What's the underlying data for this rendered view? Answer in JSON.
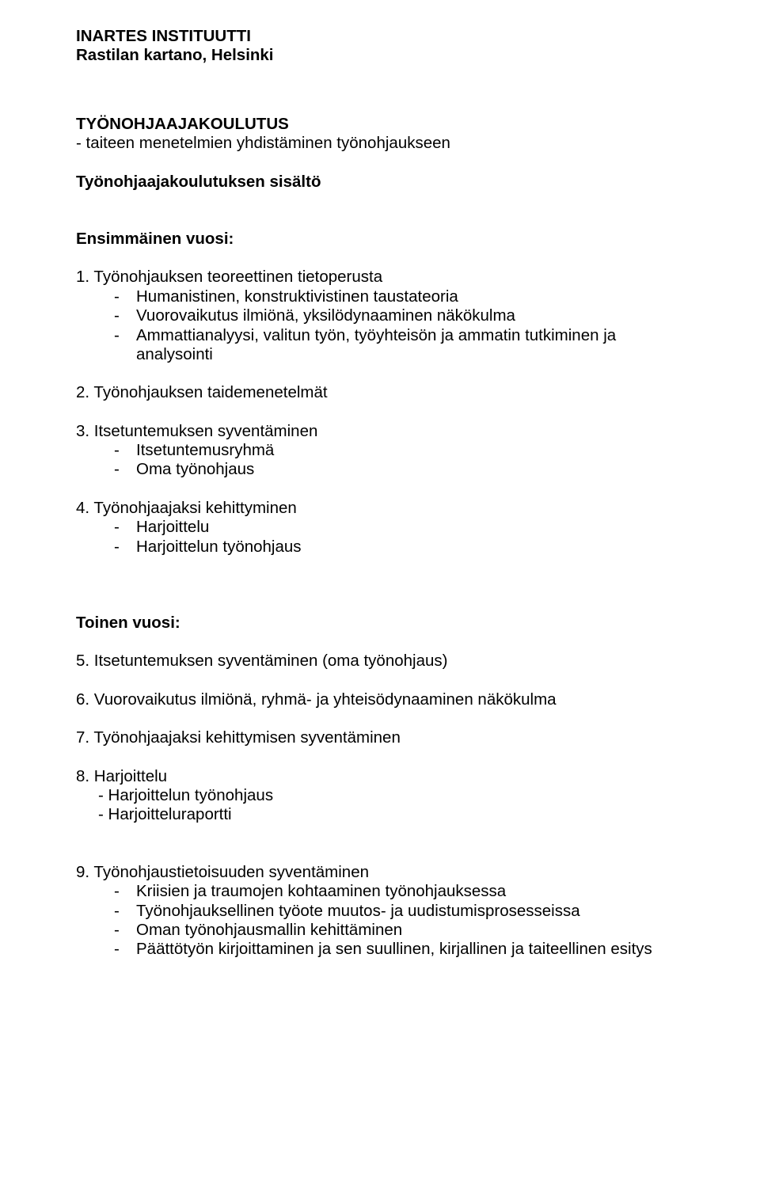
{
  "header": {
    "org": "INARTES INSTITUUTTI",
    "location": "Rastilan kartano, Helsinki"
  },
  "title": "TYÖNOHJAAJAKOULUTUS",
  "subtitle": "- taiteen menetelmien yhdistäminen työnohjaukseen",
  "section_label": "Työnohjaajakoulutuksen sisältö",
  "year1": {
    "heading": "Ensimmäinen vuosi:",
    "item1": {
      "title": "1. Työnohjauksen teoreettinen tietoperusta",
      "sub1": "Humanistinen, konstruktivistinen taustateoria",
      "sub2": "Vuorovaikutus ilmiönä, yksilödynaaminen näkökulma",
      "sub3": "Ammattianalyysi, valitun työn, työyhteisön ja ammatin tutkiminen ja analysointi"
    },
    "item2": "2. Työnohjauksen taidemenetelmät",
    "item3": {
      "title": "3. Itsetuntemuksen syventäminen",
      "sub1": "Itsetuntemusryhmä",
      "sub2": "Oma työnohjaus"
    },
    "item4": {
      "title": "4. Työnohjaajaksi kehittyminen",
      "sub1": "Harjoittelu",
      "sub2": "Harjoittelun työnohjaus"
    }
  },
  "year2": {
    "heading": "Toinen vuosi:",
    "item5": "5. Itsetuntemuksen syventäminen (oma työnohjaus)",
    "item6": "6. Vuorovaikutus ilmiönä, ryhmä- ja yhteisödynaaminen näkökulma",
    "item7": "7. Työnohjaajaksi kehittymisen syventäminen",
    "item8": {
      "title": "8.  Harjoittelu",
      "sub1": "- Harjoittelun työnohjaus",
      "sub2": "- Harjoitteluraportti"
    },
    "item9": {
      "title": "9.  Työnohjaustietoisuuden syventäminen",
      "sub1": "Kriisien ja traumojen kohtaaminen työnohjauksessa",
      "sub2": "Työnohjauksellinen työote muutos- ja uudistumisprosesseissa",
      "sub3": "Oman työnohjausmallin kehittäminen",
      "sub4": "Päättötyön kirjoittaminen ja sen suullinen, kirjallinen ja taiteellinen esitys"
    }
  }
}
